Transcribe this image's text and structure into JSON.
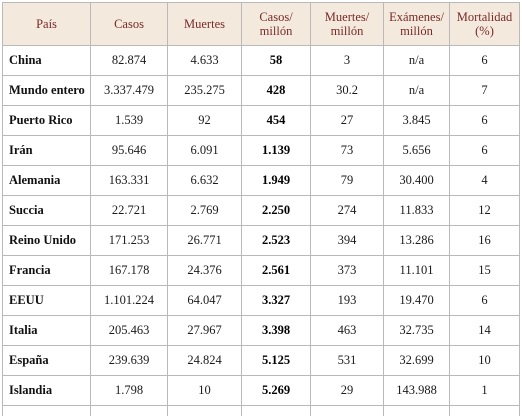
{
  "table": {
    "headers": [
      [
        "País"
      ],
      [
        "Casos"
      ],
      [
        "Muertes"
      ],
      [
        "Casos/",
        "millón"
      ],
      [
        "Muertes/",
        "millón"
      ],
      [
        "Exámenes/",
        "millón"
      ],
      [
        "Mortalidad",
        "(%)"
      ]
    ],
    "rows": [
      [
        "China",
        "82.874",
        "4.633",
        "58",
        "3",
        "n/a",
        "6"
      ],
      [
        "Mundo entero",
        "3.337.479",
        "235.275",
        "428",
        "30.2",
        "n/a",
        "7"
      ],
      [
        "Puerto Rico",
        "1.539",
        "92",
        "454",
        "27",
        "3.845",
        "6"
      ],
      [
        "Irán",
        "95.646",
        "6.091",
        "1.139",
        "73",
        "5.656",
        "6"
      ],
      [
        "Alemania",
        "163.331",
        "6.632",
        "1.949",
        "79",
        "30.400",
        "4"
      ],
      [
        "Succia",
        "22.721",
        "2.769",
        "2.250",
        "274",
        "11.833",
        "12"
      ],
      [
        "Reino Unido",
        "171.253",
        "26.771",
        "2.523",
        "394",
        "13.286",
        "16"
      ],
      [
        "Francia",
        "167.178",
        "24.376",
        "2.561",
        "373",
        "11.101",
        "15"
      ],
      [
        "EEUU",
        "1.101.224",
        "64.047",
        "3.327",
        "193",
        "19.470",
        "6"
      ],
      [
        "Italia",
        "205.463",
        "27.967",
        "3.398",
        "463",
        "32.735",
        "14"
      ],
      [
        "España",
        "239.639",
        "24.824",
        "5.125",
        "531",
        "32.699",
        "10"
      ],
      [
        "Islandia",
        "1.798",
        "10",
        "5.269",
        "29",
        "143.988",
        "1"
      ]
    ]
  }
}
